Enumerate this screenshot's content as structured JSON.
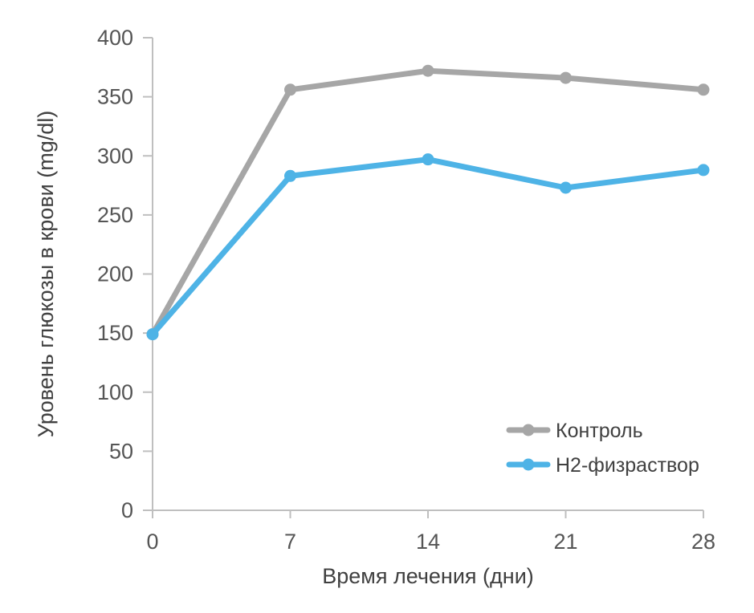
{
  "chart_data": {
    "type": "line",
    "title": "",
    "xlabel": "Время лечения (дни)",
    "ylabel": "Уровень глюкозы в крови (mg/dl)",
    "x": [
      0,
      7,
      14,
      21,
      28
    ],
    "xlim": [
      0,
      28
    ],
    "ylim": [
      0,
      400
    ],
    "y_ticks": [
      0,
      50,
      100,
      150,
      200,
      250,
      300,
      350,
      400
    ],
    "grid": false,
    "legend_position": "bottom-right",
    "series": [
      {
        "name": "Контроль",
        "color": "#a6a6a6",
        "values": [
          149,
          356,
          372,
          366,
          356
        ]
      },
      {
        "name": "H2-физраствор",
        "color": "#4eb3e6",
        "values": [
          149,
          283,
          297,
          273,
          288
        ]
      }
    ]
  }
}
